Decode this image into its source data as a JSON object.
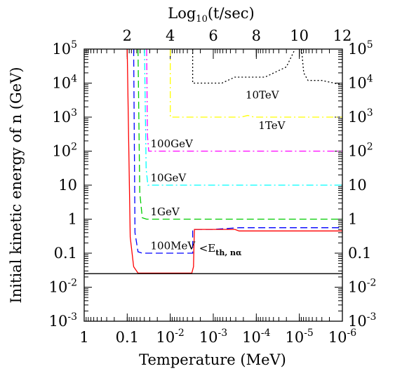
{
  "chart_data": {
    "type": "line",
    "xlabel": "Temperature (MeV)",
    "top_xlabel": "Log10(t/sec)",
    "ylabel": "Initial kinetic energy of n (GeV)",
    "x_scale": "log-reversed",
    "xlim": [
      1,
      1e-06
    ],
    "y_scale": "log",
    "ylim": [
      0.001,
      100000
    ],
    "x_ticks": [
      "1",
      "0.1",
      "10^-2",
      "10^-3",
      "10^-4",
      "10^-5",
      "10^-6"
    ],
    "top_ticks": [
      "2",
      "4",
      "6",
      "8",
      "10",
      "12"
    ],
    "top_tick_values": [
      2,
      4,
      6,
      8,
      10,
      12
    ],
    "y_ticks": [
      "10^-3",
      "10^-2",
      "0.1",
      "1",
      "10",
      "10^2",
      "10^3",
      "10^4",
      "10^5"
    ],
    "grid": false,
    "series": [
      {
        "name": "10TeV",
        "color": "#000000",
        "dash": "dotted",
        "points": [
          [
            0.00301,
            100000
          ],
          [
            0.00301,
            10000
          ],
          [
            0.000631,
            10000
          ],
          [
            0.000316,
            15000
          ],
          [
            6.31e-05,
            15000
          ],
          [
            3.9e-05,
            20000
          ],
          [
            2e-05,
            30000
          ],
          [
            1.26e-05,
            100000
          ]
        ]
      },
      {
        "name": "",
        "color": "#000000",
        "dash": "dotted",
        "points": [
          [
            8.9e-06,
            100000
          ],
          [
            7.9e-06,
            20000
          ],
          [
            6.3e-06,
            12000
          ],
          [
            3e-06,
            12000
          ],
          [
            1e-06,
            8900
          ]
        ]
      },
      {
        "name": "1TeV",
        "color": "#ffff00",
        "dash": "dash-dot",
        "points": [
          [
            0.01,
            100000
          ],
          [
            0.01,
            1000
          ],
          [
            0.000224,
            1000
          ],
          [
            0.000158,
            1120
          ],
          [
            0.000112,
            1000
          ],
          [
            1e-06,
            1000
          ]
        ]
      },
      {
        "name": "100GeV",
        "color": "#ff00ff",
        "dash": "dash-dot",
        "points": [
          [
            0.0354,
            100000
          ],
          [
            0.0339,
            300
          ],
          [
            0.0316,
            100
          ],
          [
            1e-06,
            100
          ]
        ]
      },
      {
        "name": "10GeV",
        "color": "#00ffff",
        "dash": "dash-dot",
        "points": [
          [
            0.0398,
            100000
          ],
          [
            0.0363,
            30
          ],
          [
            0.0331,
            10
          ],
          [
            1e-06,
            10
          ]
        ]
      },
      {
        "name": "1GeV",
        "color": "#00cc00",
        "dash": "dashed",
        "points": [
          [
            0.0562,
            100000
          ],
          [
            0.0512,
            6
          ],
          [
            0.0447,
            1.1
          ],
          [
            0.0355,
            1
          ],
          [
            1e-06,
            1
          ]
        ]
      },
      {
        "name": "100MeV",
        "color": "#0000ff",
        "dash": "dashed",
        "points": [
          [
            0.0708,
            100000
          ],
          [
            0.0661,
            0.4
          ],
          [
            0.0562,
            0.11
          ],
          [
            0.0447,
            0.1
          ],
          [
            0.00302,
            0.1
          ],
          [
            0.00302,
            0.5
          ],
          [
            0.001,
            0.5
          ],
          [
            0.000251,
            0.56
          ],
          [
            1e-06,
            0.56
          ]
        ]
      },
      {
        "name": "<E th, nα",
        "color": "#ff0000",
        "dash": "solid",
        "points": [
          [
            0.1,
            100000
          ],
          [
            0.0851,
            0.3
          ],
          [
            0.0708,
            0.04
          ],
          [
            0.0562,
            0.026
          ],
          [
            0.00316,
            0.026
          ],
          [
            0.00288,
            0.04
          ],
          [
            0.00282,
            0.15
          ],
          [
            0.00275,
            0.5
          ],
          [
            0.000316,
            0.5
          ],
          [
            0.000251,
            0.45
          ],
          [
            1e-06,
            0.45
          ]
        ]
      },
      {
        "name": "",
        "color": "#000000",
        "dash": "solid",
        "points": [
          [
            1,
            0.025
          ],
          [
            1e-06,
            0.025
          ]
        ]
      }
    ],
    "labels": [
      {
        "text": "10TeV",
        "x": 0.000178,
        "y": 3500,
        "color": "#000000"
      },
      {
        "text": "1TeV",
        "x": 8.91e-05,
        "y": 450,
        "color": "#000000"
      },
      {
        "text": "100GeV",
        "x": 0.0288,
        "y": 130,
        "color": "#000000"
      },
      {
        "text": "10GeV",
        "x": 0.0288,
        "y": 13,
        "color": "#000000"
      },
      {
        "text": "1GeV",
        "x": 0.0288,
        "y": 1.3,
        "color": "#000000"
      },
      {
        "text": "100MeV",
        "x": 0.0288,
        "y": 0.13,
        "color": "#000000"
      },
      {
        "text": "<E",
        "sub": "th, nα",
        "x": 0.00214,
        "y": 0.11,
        "color": "#ff0000"
      }
    ]
  }
}
